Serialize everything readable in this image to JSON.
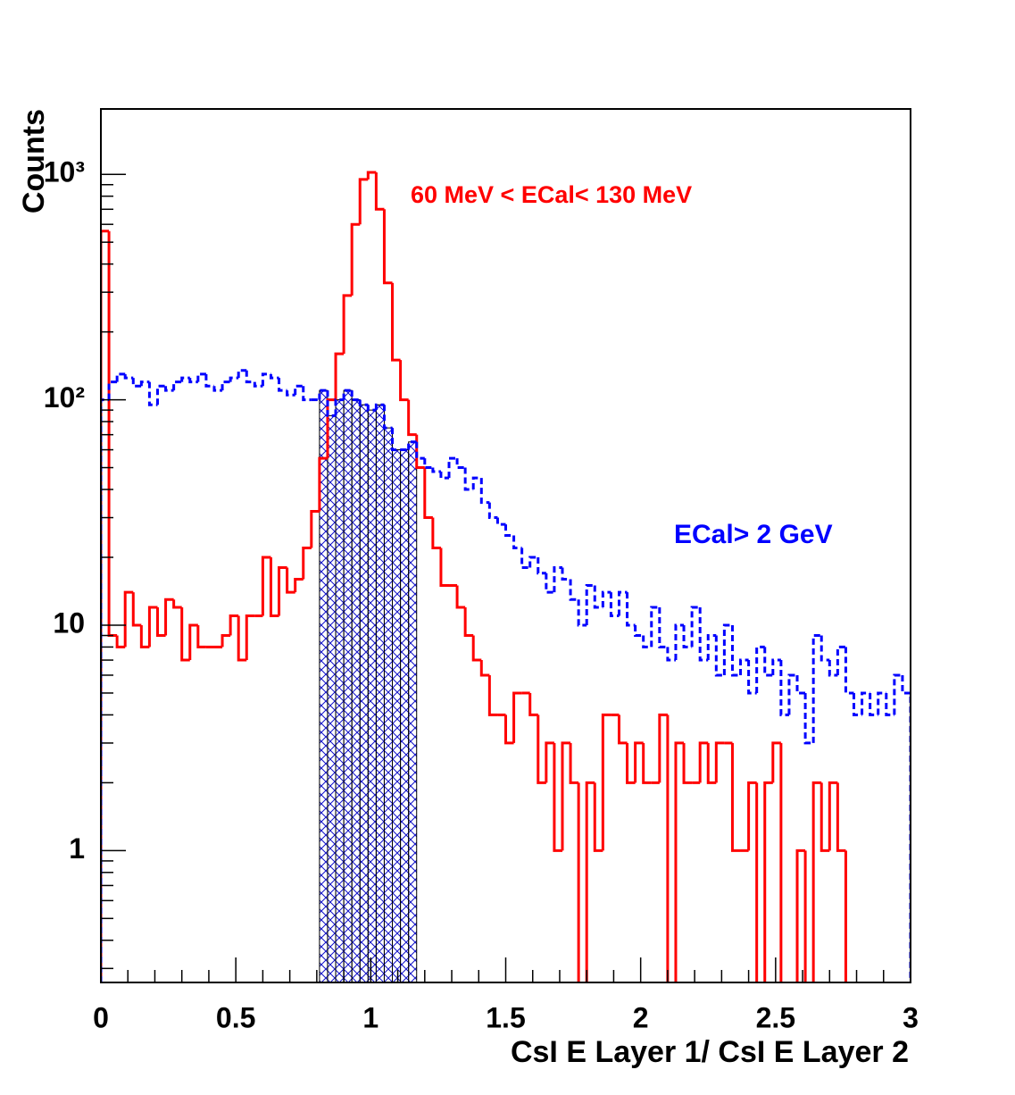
{
  "chart_data": {
    "type": "histogram",
    "xlabel": "CsI E Layer 1/ CsI E Layer 2",
    "ylabel": "Counts",
    "log_y": true,
    "xlim": [
      0,
      3
    ],
    "xticks": [
      0,
      0.5,
      1,
      1.5,
      2,
      2.5,
      3
    ],
    "ylim": [
      0.26,
      1950
    ],
    "yticks": [
      1,
      10,
      {
        "value": 100,
        "label": "10²"
      },
      {
        "value": 1000,
        "label": "10³"
      }
    ],
    "bins": [
      0,
      0.03,
      0.06,
      0.09,
      0.12,
      0.15,
      0.18,
      0.21,
      0.24,
      0.27,
      0.3,
      0.33,
      0.36,
      0.39,
      0.42,
      0.45,
      0.48,
      0.51,
      0.54,
      0.57,
      0.6,
      0.63,
      0.66,
      0.69,
      0.72,
      0.75,
      0.78,
      0.81,
      0.84,
      0.87,
      0.9,
      0.93,
      0.96,
      0.99,
      1.02,
      1.05,
      1.08,
      1.11,
      1.14,
      1.17,
      1.2,
      1.23,
      1.26,
      1.29,
      1.32,
      1.35,
      1.38,
      1.41,
      1.44,
      1.47,
      1.5,
      1.53,
      1.56,
      1.59,
      1.62,
      1.65,
      1.68,
      1.71,
      1.74,
      1.77,
      1.8,
      1.83,
      1.86,
      1.89,
      1.92,
      1.95,
      1.98,
      2.01,
      2.04,
      2.07,
      2.1,
      2.13,
      2.16,
      2.19,
      2.22,
      2.25,
      2.28,
      2.31,
      2.34,
      2.37,
      2.4,
      2.43,
      2.46,
      2.49,
      2.52,
      2.55,
      2.58,
      2.61,
      2.64,
      2.67,
      2.7,
      2.73,
      2.76,
      2.79,
      2.82,
      2.85,
      2.88,
      2.91,
      2.94,
      2.97,
      3
    ],
    "series": [
      {
        "color": "#ff0000",
        "dashed": false,
        "values": [
          560,
          9,
          8,
          14,
          10,
          8,
          12,
          9,
          13,
          12,
          7,
          10,
          8,
          8,
          8,
          9,
          11,
          7,
          11,
          11,
          20,
          11,
          18,
          14,
          16,
          22,
          32,
          55,
          100,
          160,
          290,
          600,
          950,
          1020,
          700,
          330,
          150,
          100,
          70,
          50,
          30,
          22,
          15,
          15,
          12,
          9,
          7,
          6,
          4,
          4,
          3,
          5,
          5,
          4,
          2,
          3,
          1,
          3,
          2,
          0,
          2,
          1,
          4,
          4,
          3,
          2,
          3,
          2,
          2,
          4,
          0,
          3,
          2,
          2,
          3,
          2,
          3,
          3,
          1,
          1,
          2,
          0,
          2,
          3,
          0,
          0,
          1,
          0,
          2,
          1,
          2,
          1,
          0,
          0,
          0,
          0,
          0,
          0,
          0,
          0
        ]
      },
      {
        "color": "#0000ff",
        "dashed": true,
        "hatch_range": [
          0.81,
          1.17
        ],
        "values": [
          100,
          120,
          130,
          125,
          115,
          120,
          95,
          115,
          110,
          120,
          125,
          120,
          130,
          115,
          110,
          120,
          125,
          135,
          120,
          115,
          130,
          125,
          110,
          105,
          115,
          100,
          100,
          110,
          85,
          100,
          110,
          100,
          95,
          90,
          95,
          75,
          60,
          60,
          65,
          55,
          50,
          48,
          45,
          55,
          50,
          40,
          45,
          35,
          30,
          28,
          25,
          22,
          18,
          20,
          17,
          14,
          18,
          16,
          13,
          10,
          15,
          12,
          14,
          11,
          14,
          10,
          9,
          8,
          12,
          8,
          7,
          10,
          8,
          12,
          7,
          9,
          6,
          10,
          6,
          7,
          5,
          8,
          6,
          7,
          4,
          6,
          5,
          3,
          9,
          7,
          6,
          8,
          5,
          4,
          5,
          4,
          5,
          4,
          6,
          5
        ]
      }
    ],
    "annotations": [
      {
        "text": "60 MeV < ECal< 130 MeV",
        "color": "#ff0000"
      },
      {
        "text": "ECal> 2 GeV",
        "color": "#0000ff"
      }
    ]
  }
}
